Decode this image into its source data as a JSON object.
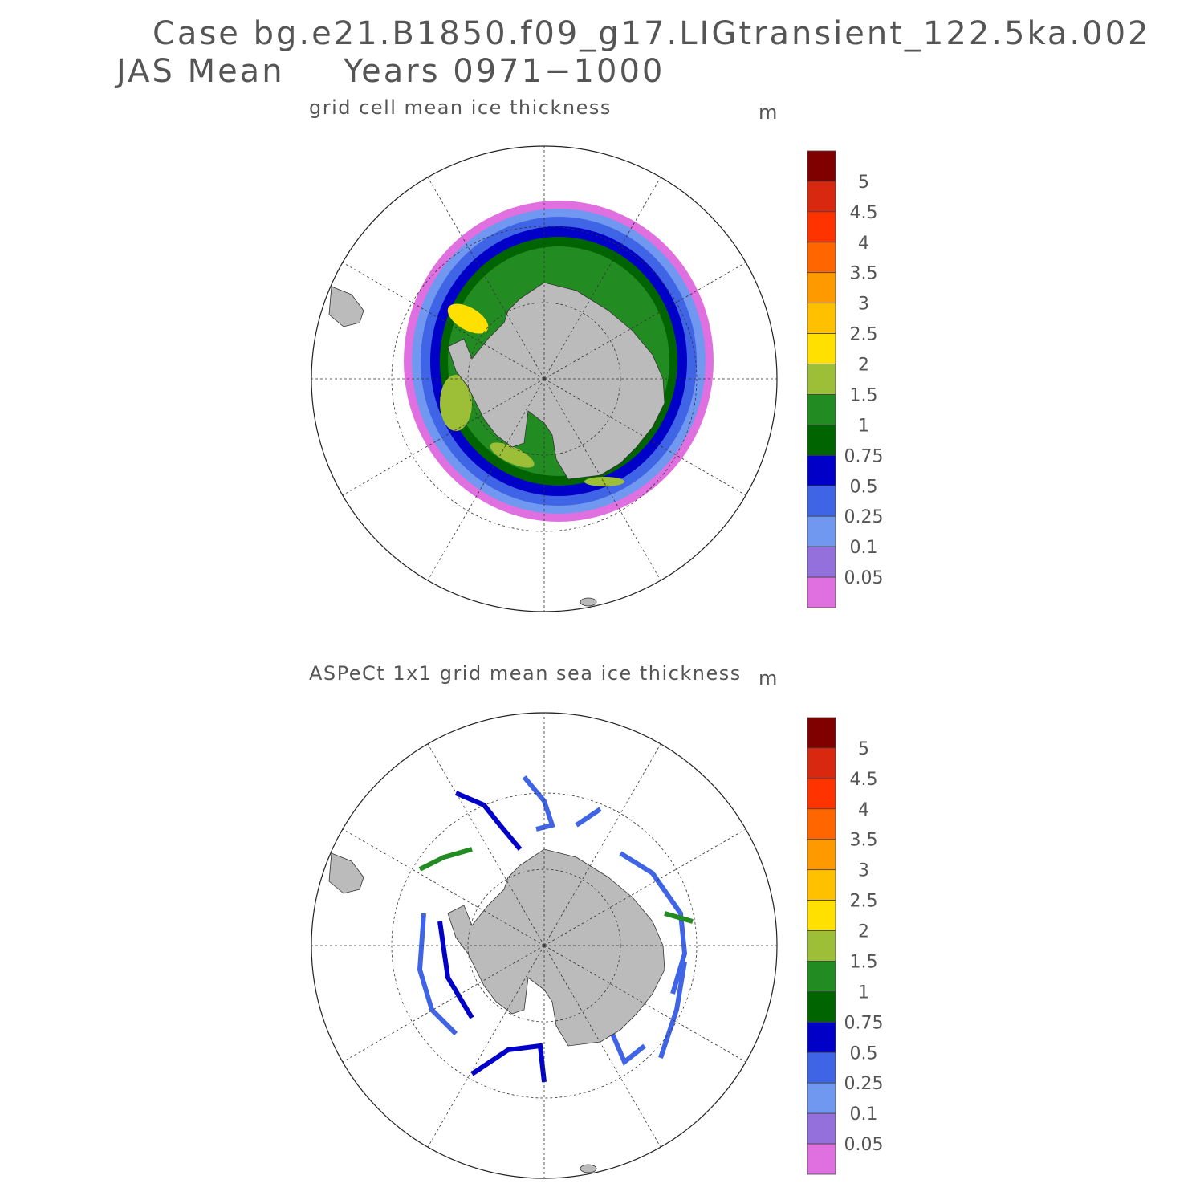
{
  "header": {
    "case": "Case bg.e21.B1850.f09_g17.LIGtransient_122.5ka.002",
    "season": "JAS Mean",
    "years": "Years 0971−1000"
  },
  "panels": [
    {
      "title": "grid cell mean ice thickness",
      "units": "m"
    },
    {
      "title": "ASPeCt 1x1 grid mean sea ice thickness",
      "units": "m"
    }
  ],
  "colorbar": {
    "labels": [
      "5",
      "4.5",
      "4",
      "3.5",
      "3",
      "2.5",
      "2",
      "1.5",
      "1",
      "0.75",
      "0.5",
      "0.25",
      "0.1",
      "0.05"
    ],
    "colors": [
      "#800000",
      "#d8280f",
      "#ff3300",
      "#ff6600",
      "#ff9900",
      "#ffc000",
      "#ffe000",
      "#9dbf38",
      "#228b22",
      "#006400",
      "#0000c8",
      "#3f64e6",
      "#7098f0",
      "#9370db",
      "#e070e0"
    ]
  }
}
